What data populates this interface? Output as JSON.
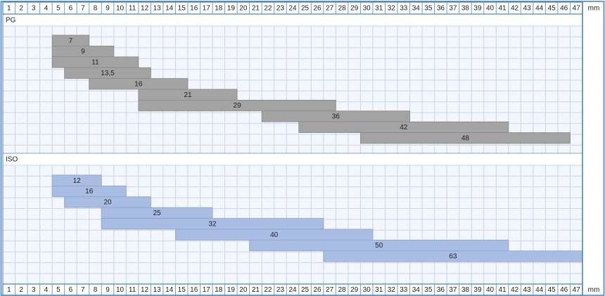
{
  "chart_data": {
    "type": "range-bar",
    "xlabel": "mm",
    "xlim": [
      0.5,
      47.5
    ],
    "xticks": [
      1,
      2,
      3,
      4,
      5,
      6,
      7,
      8,
      9,
      10,
      11,
      12,
      13,
      14,
      15,
      16,
      17,
      18,
      19,
      20,
      21,
      22,
      23,
      24,
      25,
      26,
      27,
      28,
      29,
      30,
      31,
      32,
      33,
      34,
      35,
      36,
      37,
      38,
      39,
      40,
      41,
      42,
      43,
      44,
      45,
      46,
      47
    ],
    "panels": [
      {
        "title": "PG",
        "color": "#a3a3a3",
        "categories": [
          "7",
          "9",
          "11",
          "13,5",
          "16",
          "21",
          "29",
          "36",
          "42",
          "48"
        ],
        "low": [
          4.5,
          4.5,
          4.5,
          5.5,
          7.5,
          11.5,
          11.5,
          21.5,
          24.5,
          29.5
        ],
        "high": [
          7.5,
          9.5,
          11.5,
          12.5,
          15.5,
          19.5,
          27.5,
          33.5,
          41.5,
          46.5
        ]
      },
      {
        "title": "ISO",
        "color": "#a9bde2",
        "categories": [
          "12",
          "16",
          "20",
          "25",
          "32",
          "40",
          "50",
          "63"
        ],
        "low": [
          4.5,
          4.5,
          5.5,
          8.5,
          8.5,
          14.5,
          20.5,
          26.5
        ],
        "high": [
          8.5,
          10.5,
          12.5,
          17.5,
          26.5,
          30.5,
          41.5,
          47.5
        ]
      }
    ]
  }
}
